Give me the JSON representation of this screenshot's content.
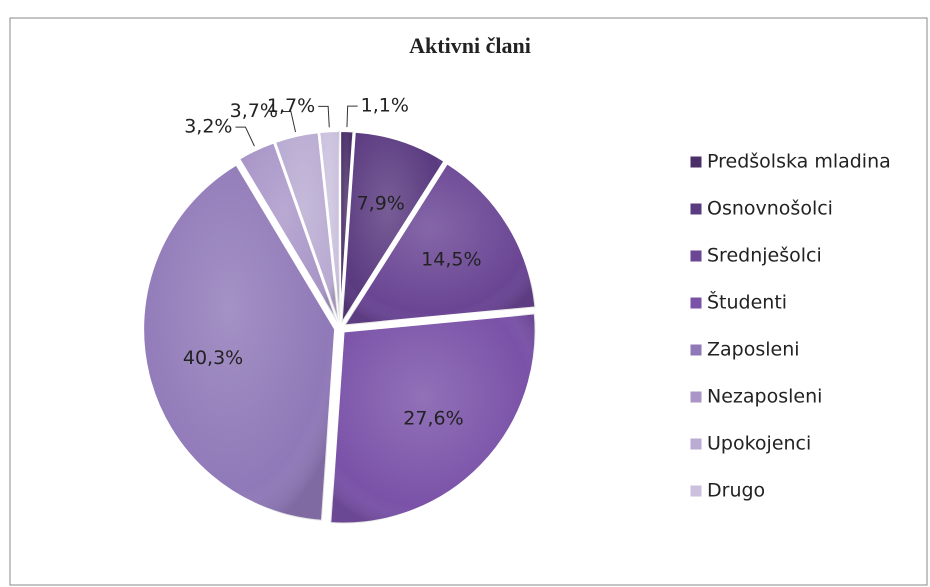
{
  "chart_data": {
    "type": "pie",
    "title": "Aktivni člani",
    "categories": [
      "Predšolska mladina",
      "Osnovnošolci",
      "Srednješolci",
      "Študenti",
      "Zaposleni",
      "Nezaposleni",
      "Upokojenci",
      "Drugo"
    ],
    "values": [
      1.1,
      7.9,
      14.5,
      27.6,
      40.3,
      3.2,
      3.7,
      1.7
    ],
    "value_labels": [
      "1,1%",
      "7,9%",
      "14,5%",
      "27,6%",
      "40,3%",
      "3,2%",
      "3,7%",
      "1,7%"
    ],
    "colors": [
      "#4a2f68",
      "#5a3a80",
      "#6a4594",
      "#7a52a8",
      "#9079b8",
      "#a996c8",
      "#b9abd2",
      "#cbc1de"
    ],
    "legend": "right"
  }
}
